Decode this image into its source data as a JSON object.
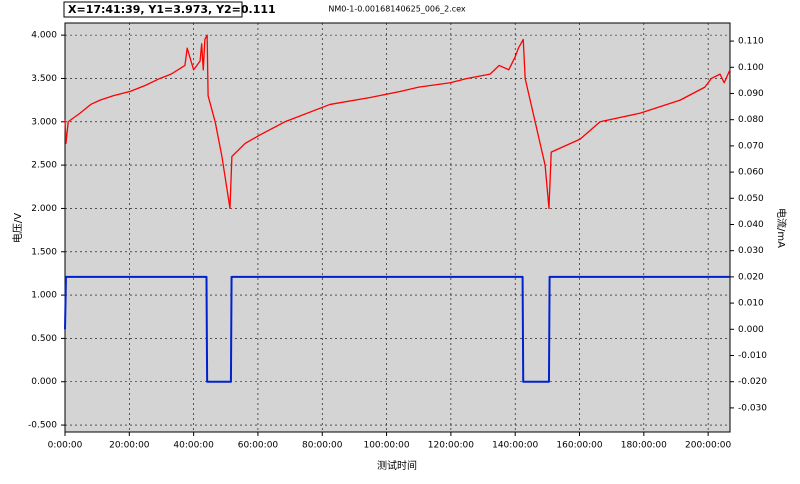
{
  "chart_data": {
    "type": "line",
    "title": "NM0-1-0.00168140625_006_2.cex",
    "readout": "X=17:41:39, Y1=3.973, Y2=0.111",
    "y_label": "电压/V",
    "y2_label": "电流/mA",
    "x_label": "测试时间",
    "grid": true,
    "xlim": [
      0,
      206.8
    ],
    "ylim": [
      -0.58,
      4.14
    ],
    "y2lim": [
      -0.0392,
      0.1169
    ],
    "xticks": [
      {
        "value": 0,
        "label": "0:00:00"
      },
      {
        "value": 20,
        "label": "20:00:00"
      },
      {
        "value": 40,
        "label": "40:00:00"
      },
      {
        "value": 60,
        "label": "60:00:00"
      },
      {
        "value": 80,
        "label": "80:00:00"
      },
      {
        "value": 100,
        "label": "100:00:00"
      },
      {
        "value": 120,
        "label": "120:00:00"
      },
      {
        "value": 140,
        "label": "140:00:00"
      },
      {
        "value": 160,
        "label": "160:00:00"
      },
      {
        "value": 180,
        "label": "180:00:00"
      },
      {
        "value": 200,
        "label": "200:00:00"
      }
    ],
    "yticks": [
      {
        "value": -0.5,
        "label": "-0.500"
      },
      {
        "value": 0,
        "label": "0.000"
      },
      {
        "value": 0.5,
        "label": "0.500"
      },
      {
        "value": 1,
        "label": "1.000"
      },
      {
        "value": 1.5,
        "label": "1.500"
      },
      {
        "value": 2,
        "label": "2.000"
      },
      {
        "value": 2.5,
        "label": "2.500"
      },
      {
        "value": 3,
        "label": "3.000"
      },
      {
        "value": 3.5,
        "label": "3.500"
      },
      {
        "value": 4,
        "label": "4.000"
      }
    ],
    "y2ticks": [
      {
        "value": -0.03,
        "label": "-0.030"
      },
      {
        "value": -0.02,
        "label": "-0.020"
      },
      {
        "value": -0.01,
        "label": "-0.010"
      },
      {
        "value": 0,
        "label": "0.000"
      },
      {
        "value": 0.01,
        "label": "0.010"
      },
      {
        "value": 0.02,
        "label": "0.020"
      },
      {
        "value": 0.03,
        "label": "0.030"
      },
      {
        "value": 0.04,
        "label": "0.040"
      },
      {
        "value": 0.05,
        "label": "0.050"
      },
      {
        "value": 0.06,
        "label": "0.060"
      },
      {
        "value": 0.07,
        "label": "0.070"
      },
      {
        "value": 0.08,
        "label": "0.080"
      },
      {
        "value": 0.09,
        "label": "0.090"
      },
      {
        "value": 0.1,
        "label": "0.100"
      },
      {
        "value": 0.11,
        "label": "0.110"
      }
    ],
    "series": [
      {
        "name": "电压",
        "color": "#ff0000",
        "axis": "y",
        "x": [
          0,
          0.3,
          1,
          4.7,
          8,
          10.9,
          15,
          20.2,
          25,
          29.5,
          33,
          37.3,
          38,
          40,
          42,
          42.5,
          43,
          43.5,
          44.2,
          44.5,
          46.7,
          48.8,
          51.3,
          51.9,
          56,
          60.7,
          68.4,
          82.4,
          94.9,
          104.2,
          110,
          119.8,
          125,
          132.2,
          135,
          138,
          140,
          141,
          142.5,
          143.1,
          146.2,
          149.3,
          150.5,
          151.2,
          160.2,
          166.4,
          178.9,
          191.3,
          199,
          201,
          203.7,
          205,
          206.8
        ],
        "values": [
          3.02,
          2.75,
          3.0,
          3.1,
          3.2,
          3.25,
          3.3,
          3.35,
          3.42,
          3.5,
          3.55,
          3.65,
          3.85,
          3.6,
          3.7,
          3.9,
          3.6,
          3.95,
          4.0,
          3.3,
          3.0,
          2.6,
          2.0,
          2.6,
          2.75,
          2.85,
          3.0,
          3.2,
          3.28,
          3.35,
          3.4,
          3.45,
          3.5,
          3.55,
          3.65,
          3.6,
          3.75,
          3.85,
          3.95,
          3.5,
          3.0,
          2.5,
          2.0,
          2.65,
          2.8,
          3.0,
          3.1,
          3.25,
          3.4,
          3.5,
          3.55,
          3.45,
          3.6
        ]
      },
      {
        "name": "电流",
        "color": "#0022cc",
        "axis": "y2",
        "x": [
          0,
          0.3,
          44.0,
          44.2,
          51.6,
          51.8,
          142.3,
          142.5,
          150.5,
          150.7,
          206.8
        ],
        "values": [
          0,
          0.02,
          0.02,
          -0.02,
          -0.02,
          0.02,
          0.02,
          -0.02,
          -0.02,
          0.02,
          0.02
        ]
      }
    ]
  }
}
